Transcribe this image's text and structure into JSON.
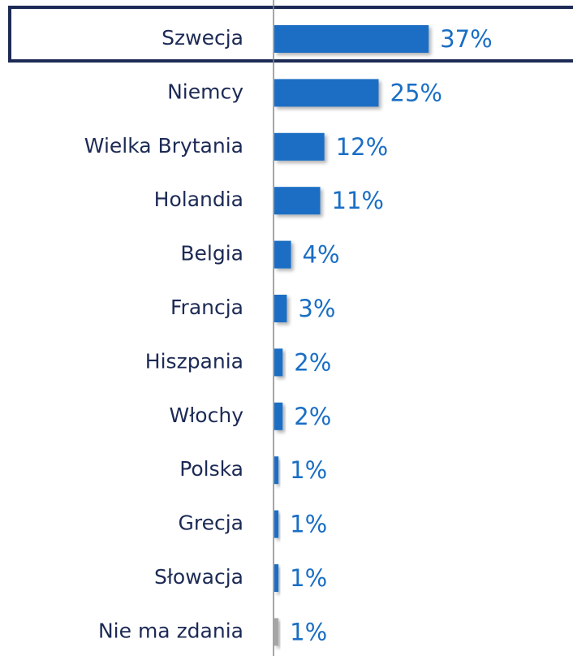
{
  "chart_data": {
    "type": "bar",
    "orientation": "horizontal",
    "categories": [
      "Szwecja",
      "Niemcy",
      "Wielka Brytania",
      "Holandia",
      "Belgia",
      "Francja",
      "Hiszpania",
      "Włochy",
      "Polska",
      "Grecja",
      "Słowacja",
      "Nie ma zdania"
    ],
    "values": [
      37,
      25,
      12,
      11,
      4,
      3,
      2,
      2,
      1,
      1,
      1,
      1
    ],
    "value_labels": [
      "37%",
      "25%",
      "12%",
      "11%",
      "4%",
      "3%",
      "2%",
      "2%",
      "1%",
      "1%",
      "1%",
      "1%"
    ],
    "colors": [
      "#1a6ec4",
      "#1a6ec4",
      "#1a6ec4",
      "#1a6ec4",
      "#1a6ec4",
      "#1a6ec4",
      "#1a6ec4",
      "#1a6ec4",
      "#1a6ec4",
      "#1a6ec4",
      "#1a6ec4",
      "#a6a6a6"
    ],
    "xlim": [
      0,
      40
    ]
  }
}
